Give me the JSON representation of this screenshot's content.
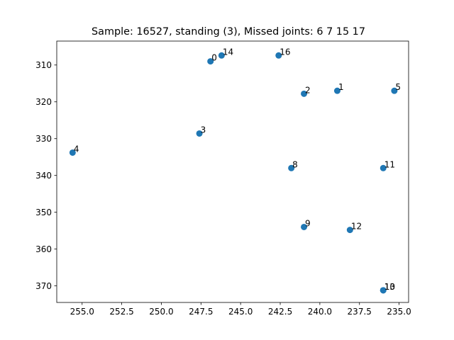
{
  "chart_data": {
    "type": "scatter",
    "title": "Sample: 16527, standing (3), Missed joints: 6  7  15  17",
    "xlabel": "",
    "ylabel": "",
    "x_inverted": true,
    "y_inverted": true,
    "xlim": [
      256.6,
      234.4
    ],
    "ylim": [
      374.5,
      303.5
    ],
    "x_ticks": [
      255.0,
      252.5,
      250.0,
      247.5,
      245.0,
      242.5,
      240.0,
      237.5,
      235.0
    ],
    "x_tick_labels": [
      "255.0",
      "252.5",
      "250.0",
      "247.5",
      "245.0",
      "242.5",
      "240.0",
      "237.5",
      "235.0"
    ],
    "y_ticks": [
      310,
      320,
      330,
      340,
      350,
      360,
      370
    ],
    "y_tick_labels": [
      "310",
      "320",
      "330",
      "340",
      "350",
      "360",
      "370"
    ],
    "grid": false,
    "point_color": "#1f77b4",
    "points": [
      {
        "label": "0",
        "x": 246.9,
        "y": 309.0
      },
      {
        "label": "1",
        "x": 238.9,
        "y": 317.0
      },
      {
        "label": "2",
        "x": 241.0,
        "y": 317.8
      },
      {
        "label": "3",
        "x": 247.6,
        "y": 328.6
      },
      {
        "label": "4",
        "x": 255.6,
        "y": 333.8
      },
      {
        "label": "5",
        "x": 235.3,
        "y": 317.0
      },
      {
        "label": "8",
        "x": 241.8,
        "y": 338.0
      },
      {
        "label": "9",
        "x": 241.0,
        "y": 354.0
      },
      {
        "label": "10",
        "x": 236.0,
        "y": 371.2
      },
      {
        "label": "11",
        "x": 236.0,
        "y": 338.0
      },
      {
        "label": "12",
        "x": 238.1,
        "y": 354.8
      },
      {
        "label": "13",
        "x": 236.0,
        "y": 371.2
      },
      {
        "label": "14",
        "x": 246.2,
        "y": 307.4
      },
      {
        "label": "16",
        "x": 242.6,
        "y": 307.4
      }
    ]
  }
}
